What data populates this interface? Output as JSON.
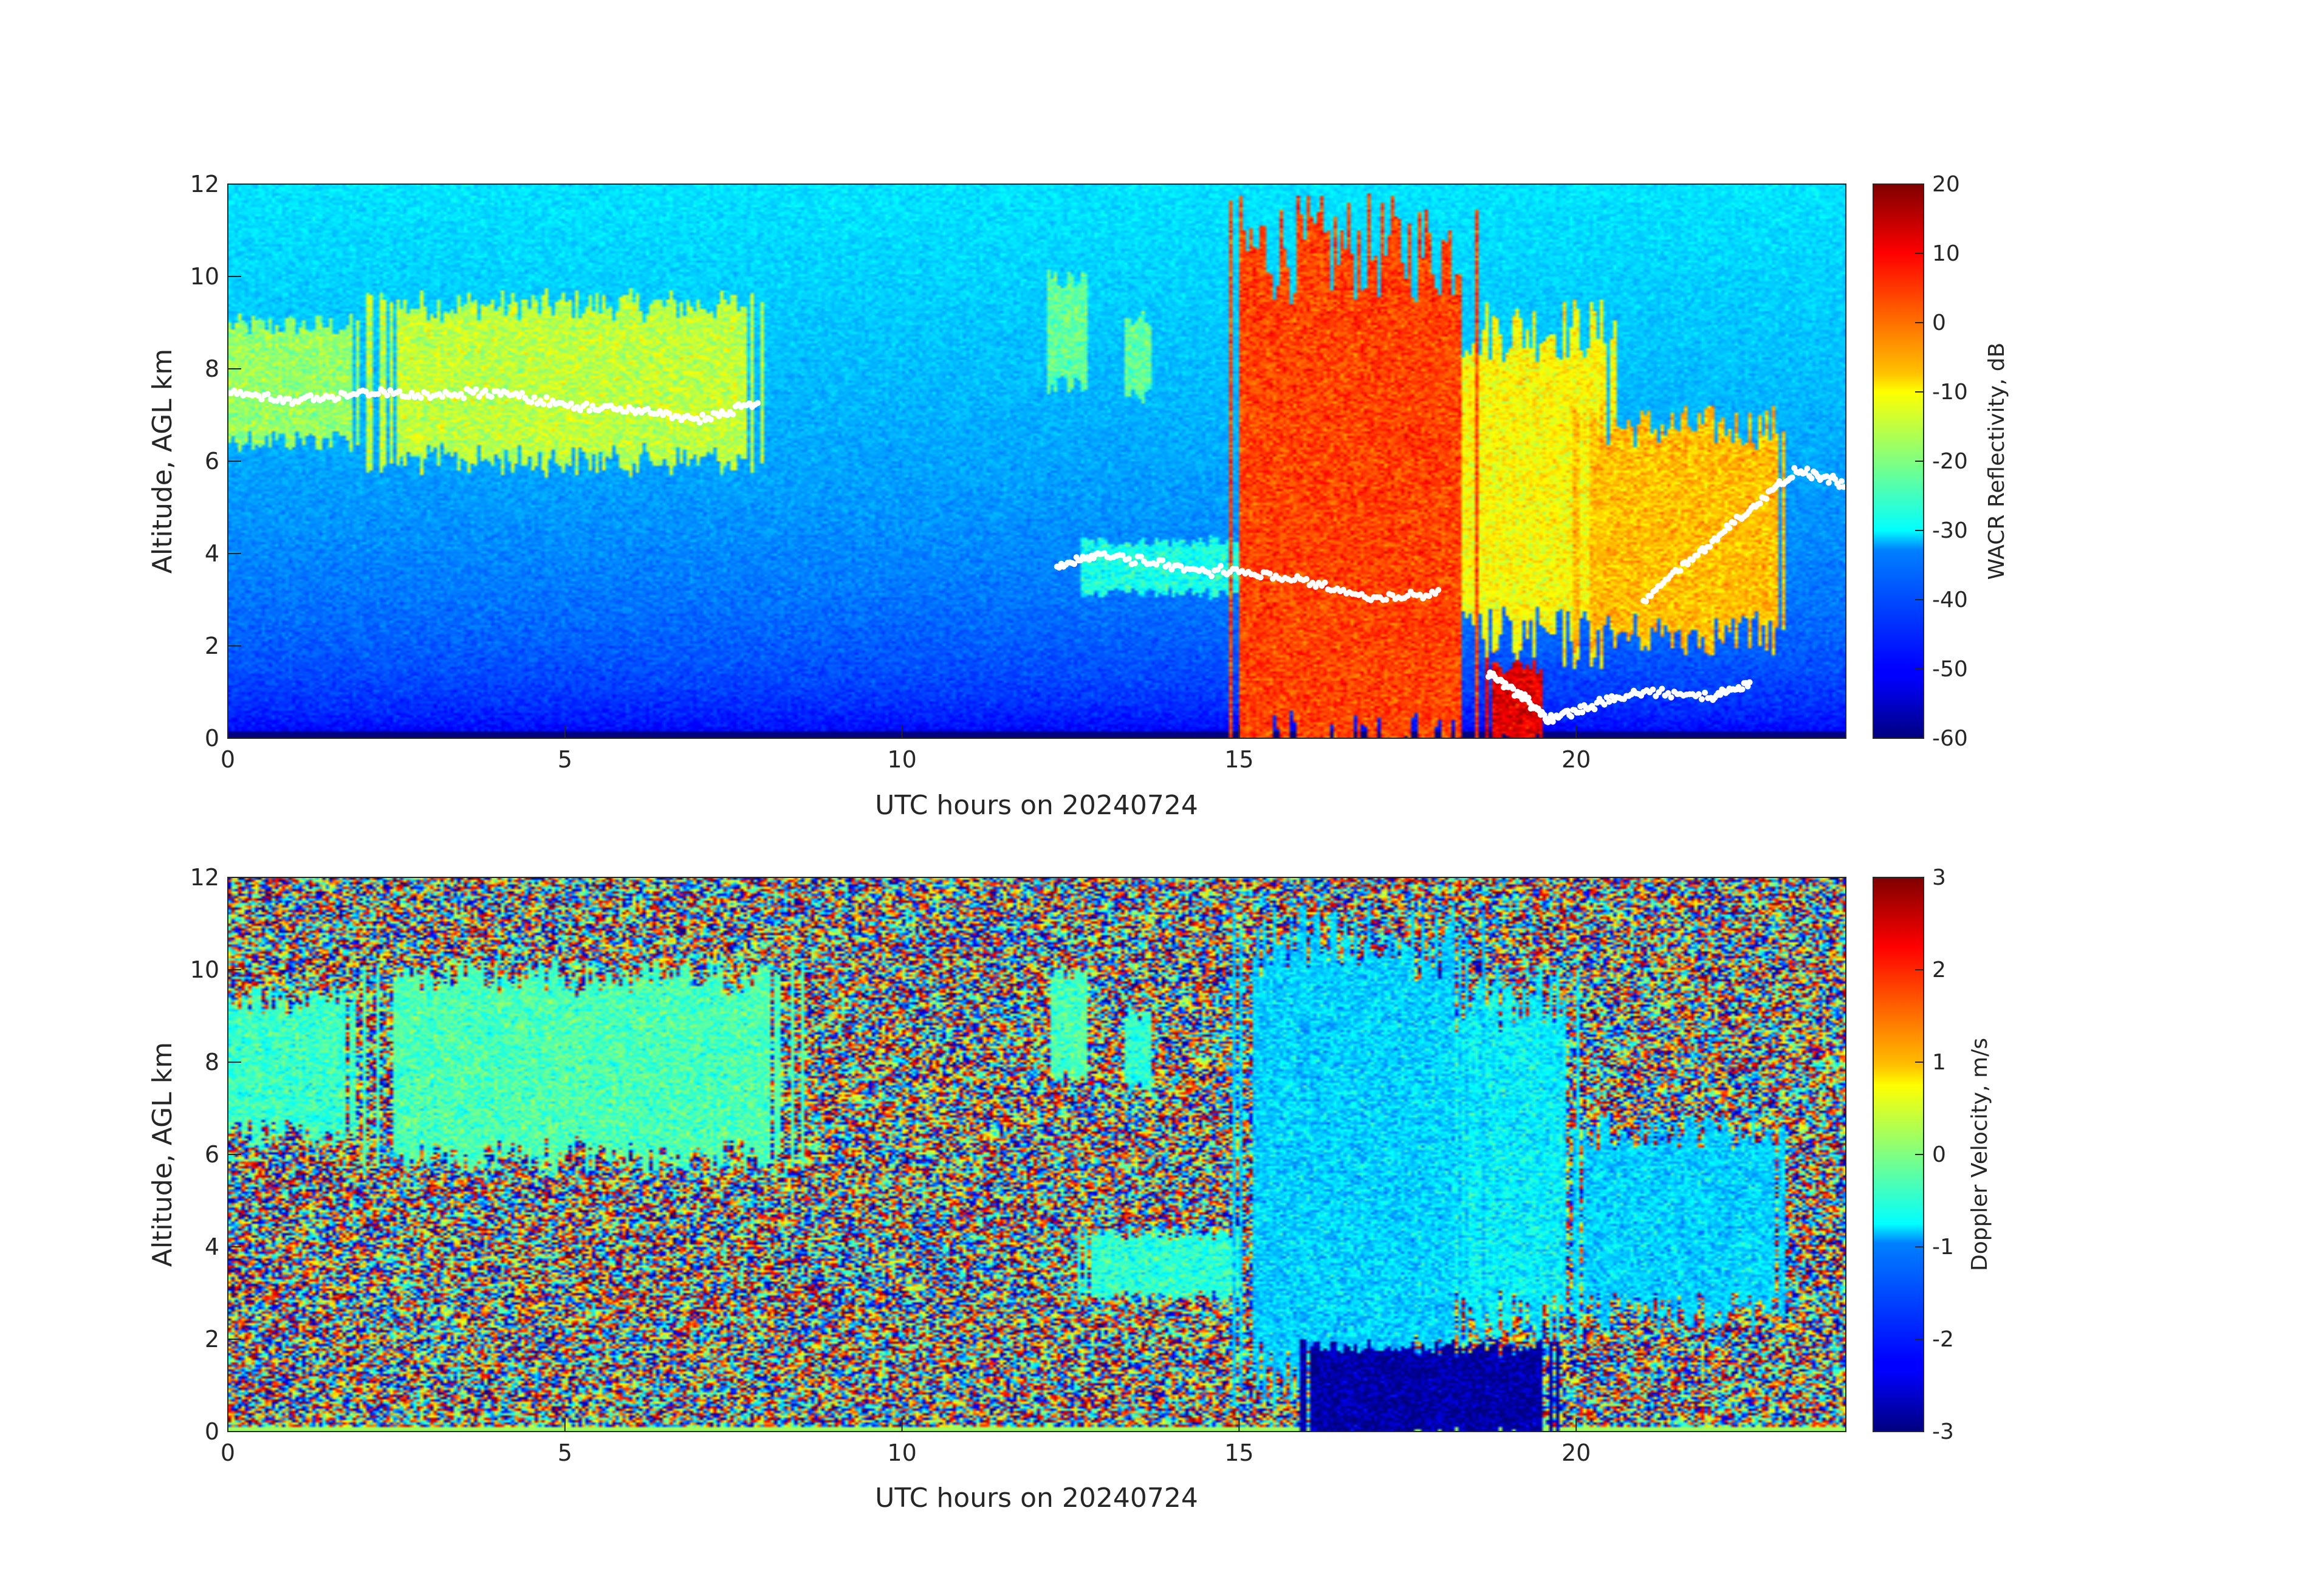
{
  "figure": {
    "panels": [
      {
        "id": "reflectivity",
        "colormap": "jet",
        "ylabel": "Altitude, AGL km",
        "xlabel": "UTC hours on 20240724",
        "colorbar_label": "WACR Reflectivity, dB",
        "colorbar_ticks": [
          "20",
          "10",
          "0",
          "-10",
          "-20",
          "-30",
          "-40",
          "-50",
          "-60"
        ]
      },
      {
        "id": "doppler",
        "colormap": "jet",
        "ylabel": "Altitude, AGL km",
        "xlabel": "UTC hours on 20240724",
        "colorbar_label": "Doppler Velocity, m/s",
        "colorbar_ticks": [
          "3",
          "2",
          "1",
          "0",
          "-1",
          "-2",
          "-3"
        ]
      }
    ],
    "x_ticks": [
      "0",
      "5",
      "10",
      "15",
      "20"
    ],
    "y_ticks": [
      "0",
      "2",
      "4",
      "6",
      "8",
      "10",
      "12"
    ]
  },
  "chart_data": [
    {
      "type": "heatmap",
      "title": "",
      "xlabel": "UTC hours on 20240724",
      "ylabel": "Altitude, AGL km",
      "colorbar_label": "WACR Reflectivity, dB",
      "xlim": [
        0,
        24
      ],
      "ylim": [
        0,
        12
      ],
      "clim": [
        -60,
        20
      ],
      "x_ticks": [
        0,
        5,
        10,
        15,
        20
      ],
      "y_ticks": [
        0,
        2,
        4,
        6,
        8,
        10,
        12
      ],
      "colorbar_ticks": [
        20,
        10,
        0,
        -10,
        -20,
        -30,
        -40,
        -50,
        -60
      ],
      "background": {
        "near_surface_dB": -55,
        "top_dB": -32
      },
      "cloud_regions": [
        {
          "name": "upper ice cloud left",
          "x": [
            0,
            1.8
          ],
          "y": [
            6.6,
            8.8
          ],
          "dB": -18
        },
        {
          "name": "upper ice cloud",
          "x": [
            2.5,
            7.7
          ],
          "y": [
            6.2,
            9.2
          ],
          "dB": -15
        },
        {
          "name": "small cloud 12.5h",
          "x": [
            12.2,
            12.7
          ],
          "y": [
            7.8,
            9.8
          ],
          "dB": -22
        },
        {
          "name": "small cloud 13.5h",
          "x": [
            13.3,
            13.7
          ],
          "y": [
            7.5,
            9.0
          ],
          "dB": -22
        },
        {
          "name": "deep convective core",
          "x": [
            15.2,
            18.3
          ],
          "y": [
            0,
            10
          ],
          "dB": 5
        },
        {
          "name": "mid anvil",
          "x": [
            17.5,
            20.5
          ],
          "y": [
            2.5,
            8.5
          ],
          "dB": -10
        },
        {
          "name": "right mid cloud",
          "x": [
            20.2,
            23.0
          ],
          "y": [
            2.5,
            6.5
          ],
          "dB": -5
        },
        {
          "name": "precip shaft",
          "x": [
            18.7,
            19.5
          ],
          "y": [
            0,
            1.5
          ],
          "dB": 12
        },
        {
          "name": "low layer 13-15h",
          "x": [
            12.8,
            15.2
          ],
          "y": [
            3.2,
            4.2
          ],
          "dB": -28
        }
      ],
      "ceilometer_points": {
        "marker_color": "#ffffff",
        "segments": [
          {
            "x": [
              0,
              1,
              2,
              3,
              4,
              5,
              6,
              7,
              7.9
            ],
            "y": [
              7.5,
              7.3,
              7.5,
              7.4,
              7.5,
              7.2,
              7.1,
              6.9,
              7.3
            ]
          },
          {
            "x": [
              12.3,
              13,
              14,
              15,
              16,
              17,
              18
            ],
            "y": [
              3.7,
              4.0,
              3.7,
              3.6,
              3.4,
              3.0,
              3.2
            ]
          },
          {
            "x": [
              18.7,
              19.2,
              19.6,
              20.2,
              21,
              22,
              22.6
            ],
            "y": [
              1.4,
              0.9,
              0.4,
              0.7,
              1.0,
              0.9,
              1.2
            ]
          },
          {
            "x": [
              21.0,
              21.8,
              22.6,
              23.3,
              24
            ],
            "y": [
              3.0,
              4.0,
              5.0,
              5.8,
              5.5
            ]
          }
        ]
      }
    },
    {
      "type": "heatmap",
      "title": "",
      "xlabel": "UTC hours on 20240724",
      "ylabel": "Altitude, AGL km",
      "colorbar_label": "Doppler Velocity, m/s",
      "xlim": [
        0,
        24
      ],
      "ylim": [
        0,
        12
      ],
      "clim": [
        -3,
        3
      ],
      "x_ticks": [
        0,
        5,
        10,
        15,
        20
      ],
      "y_ticks": [
        0,
        2,
        4,
        6,
        8,
        10,
        12
      ],
      "colorbar_ticks": [
        3,
        2,
        1,
        0,
        -1,
        -2,
        -3
      ],
      "background": "random noise",
      "cloud_regions": [
        {
          "name": "upper ice cloud left",
          "x": [
            0,
            1.8
          ],
          "y": [
            6.6,
            9.2
          ],
          "ms": -0.4
        },
        {
          "name": "upper ice cloud",
          "x": [
            2.5,
            8.0
          ],
          "y": [
            6.2,
            9.6
          ],
          "ms": -0.3
        },
        {
          "name": "small cloud 12.5h",
          "x": [
            12.2,
            12.7
          ],
          "y": [
            7.8,
            9.8
          ],
          "ms": -0.3
        },
        {
          "name": "small cloud 13.5h",
          "x": [
            13.3,
            13.7
          ],
          "y": [
            7.5,
            9.0
          ],
          "ms": -0.5
        },
        {
          "name": "convective region",
          "x": [
            15.2,
            18.3
          ],
          "y": [
            1.8,
            10
          ],
          "ms": -1.0
        },
        {
          "name": "anvil",
          "x": [
            17.5,
            19.8
          ],
          "y": [
            2.8,
            9.0
          ],
          "ms": -0.8
        },
        {
          "name": "right mid cloud",
          "x": [
            20.0,
            23.0
          ],
          "y": [
            2.8,
            6.3
          ],
          "ms": -1.0
        },
        {
          "name": "low layer 13-15h",
          "x": [
            12.8,
            15.0
          ],
          "y": [
            3.0,
            4.2
          ],
          "ms": -0.5
        },
        {
          "name": "rain shaft",
          "x": [
            16.2,
            19.5
          ],
          "y": [
            0,
            1.7
          ],
          "ms": -2.8
        }
      ]
    }
  ]
}
